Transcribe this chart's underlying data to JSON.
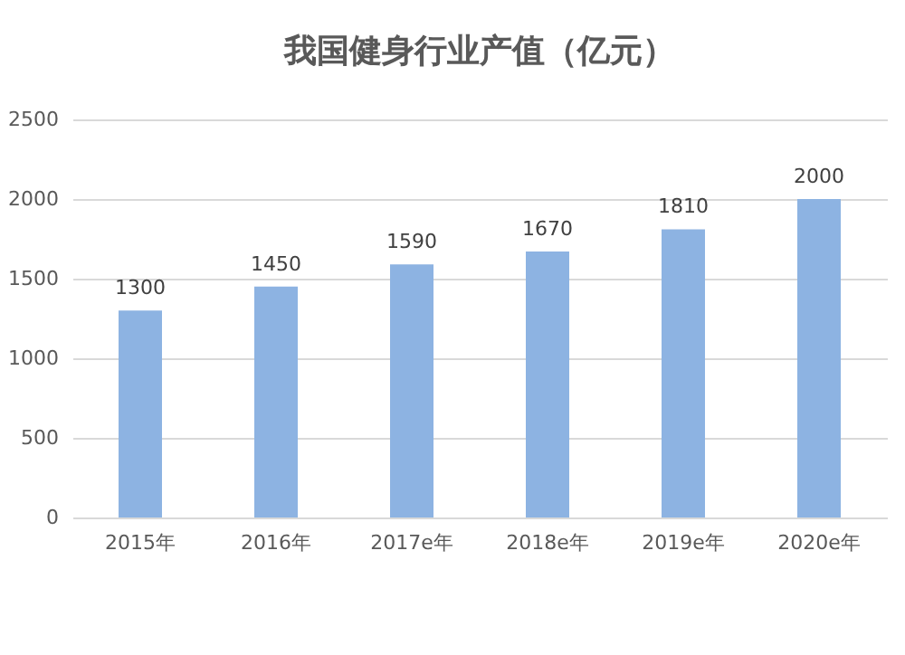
{
  "chart_data": {
    "type": "bar",
    "title": "我国健身行业产值（亿元）",
    "categories": [
      "2015年",
      "2016年",
      "2017e年",
      "2018e年",
      "2019e年",
      "2020e年"
    ],
    "values": [
      1300,
      1450,
      1590,
      1670,
      1810,
      2000
    ],
    "color": "#8db3e2",
    "ylim": [
      0,
      2500
    ],
    "yticks": [
      0,
      500,
      1000,
      1500,
      2000,
      2500
    ],
    "grid": "y",
    "data_labels": true
  }
}
